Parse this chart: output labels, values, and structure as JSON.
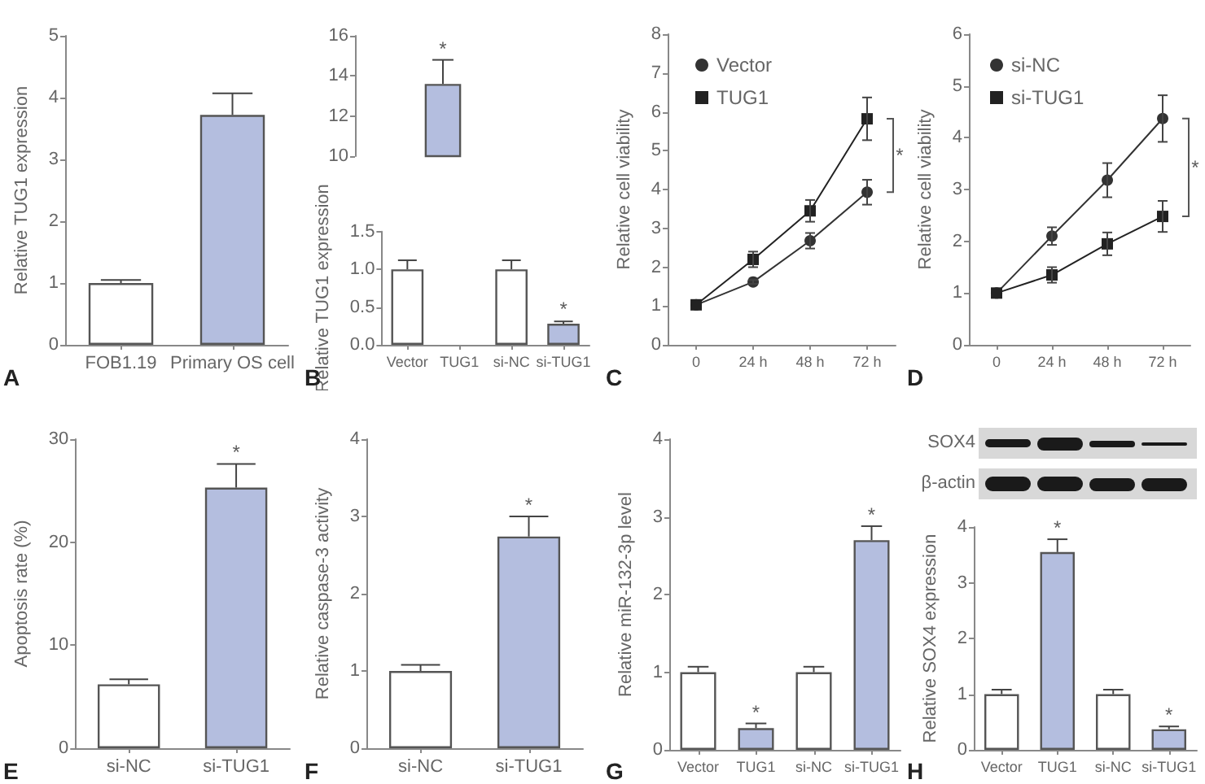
{
  "chart_data": [
    {
      "type": "bar",
      "ylabel": "Relative TUG1 expression",
      "categories": [
        "FOB1.19",
        "Primary OS cell"
      ],
      "values": [
        1.0,
        3.72
      ],
      "colors": [
        "#ffffff",
        "#b4bedf"
      ],
      "errors": [
        [
          1.0,
          1.05
        ],
        [
          3.72,
          4.07
        ]
      ],
      "ylim": [
        0,
        5
      ],
      "yticks": [
        0,
        1,
        2,
        3,
        4,
        5
      ],
      "annotations": [
        "A"
      ]
    },
    {
      "type": "bar",
      "categories": [
        "Vector",
        "TUG1",
        "si-NC",
        "si-TUG1"
      ],
      "values": [
        null,
        13.6,
        null,
        null
      ],
      "colors": [
        "#ffffff",
        "#b4bedf",
        "#ffffff",
        "#b4bedf"
      ],
      "errors": [
        null,
        [
          13.6,
          14.8
        ],
        null,
        null
      ],
      "ylim": [
        10,
        16
      ],
      "yticks": [
        10,
        12,
        14,
        16
      ],
      "tick_labels": "y",
      "annotations": [
        {
          "text": "*",
          "x": "TUG1",
          "y": 13.6
        }
      ]
    },
    {
      "type": "bar",
      "ylabel": "Relative TUG1 expression",
      "categories": [
        "Vector",
        "TUG1",
        "si-NC",
        "si-TUG1"
      ],
      "values": [
        1.0,
        null,
        1.0,
        0.28
      ],
      "colors": [
        "#ffffff",
        "#b4bedf",
        "#ffffff",
        "#b4bedf"
      ],
      "errors": [
        [
          1.0,
          1.12
        ],
        null,
        [
          1.0,
          1.12
        ],
        [
          0.28,
          0.31
        ]
      ],
      "ylim": [
        0,
        1.5
      ],
      "yticks": [
        {
          "value": 0,
          "label": "0.0"
        },
        0.5,
        {
          "value": 1,
          "label": "1.0"
        },
        1.5
      ],
      "annotations": [
        "B",
        {
          "text": "*",
          "x": "si-TUG1",
          "y": 0.28
        }
      ]
    },
    {
      "type": "line",
      "ylabel": "Relative cell viability",
      "categories": [
        "0",
        "24 h",
        "48 h",
        "72 h"
      ],
      "series": [
        {
          "name": "Vector",
          "color": "#333333",
          "marker": "circle",
          "values": [
            1.03,
            1.62,
            2.68,
            3.93
          ],
          "errors": [
            0,
            0.05,
            0.2,
            0.32
          ]
        },
        {
          "name": "TUG1",
          "color": "#222222",
          "marker": "square",
          "values": [
            1.03,
            2.2,
            3.45,
            5.82
          ],
          "errors": [
            0,
            0.2,
            0.28,
            0.55
          ]
        }
      ],
      "ylim": [
        0,
        8
      ],
      "yticks": [
        0,
        1,
        2,
        3,
        4,
        5,
        6,
        7,
        8
      ],
      "legend": "top left",
      "line_style": "solid",
      "annotations": [
        "C",
        {
          "text": "*",
          "x": "72 h",
          "y": 5.82
        }
      ]
    },
    {
      "type": "line",
      "ylabel": "Relative cell viability",
      "categories": [
        "0",
        "24 h",
        "48 h",
        "72 h"
      ],
      "series": [
        {
          "name": "si-NC",
          "color": "#333333",
          "marker": "circle",
          "values": [
            1.0,
            2.1,
            3.18,
            4.37
          ],
          "errors": [
            0,
            0.17,
            0.33,
            0.45
          ]
        },
        {
          "name": "si-TUG1",
          "color": "#222222",
          "marker": "square",
          "values": [
            1.0,
            1.35,
            1.95,
            2.48
          ],
          "errors": [
            0,
            0.15,
            0.22,
            0.3
          ]
        }
      ],
      "ylim": [
        0,
        6
      ],
      "yticks": [
        0,
        1,
        2,
        3,
        4,
        5,
        6
      ],
      "legend": "top left",
      "line_style": "solid",
      "annotations": [
        "D",
        {
          "text": "*",
          "x": "72 h",
          "y": 4.37
        }
      ]
    },
    {
      "type": "bar",
      "ylabel": "Apoptosis rate (%)",
      "categories": [
        "si-NC",
        "si-TUG1"
      ],
      "values": [
        6.2,
        25.3
      ],
      "colors": [
        "#ffffff",
        "#b4bedf"
      ],
      "errors": [
        [
          6.2,
          6.7
        ],
        [
          25.3,
          27.6
        ]
      ],
      "ylim": [
        0,
        30
      ],
      "yticks": [
        0,
        10,
        20,
        30
      ],
      "annotations": [
        "E",
        {
          "text": "*",
          "x": "si-TUG1",
          "y": 25.3
        }
      ]
    },
    {
      "type": "bar",
      "ylabel": "Relative caspase-3 activity",
      "categories": [
        "si-NC",
        "si-TUG1"
      ],
      "values": [
        1.0,
        2.74
      ],
      "colors": [
        "#ffffff",
        "#b4bedf"
      ],
      "errors": [
        [
          1.0,
          1.08
        ],
        [
          2.74,
          3.0
        ]
      ],
      "ylim": [
        0,
        4
      ],
      "yticks": [
        0,
        1,
        2,
        3,
        4
      ],
      "annotations": [
        "F",
        {
          "text": "*",
          "x": "si-TUG1",
          "y": 2.74
        }
      ]
    },
    {
      "type": "bar",
      "ylabel": "Relative miR-132-3p level",
      "categories": [
        "Vector",
        "TUG1",
        "si-NC",
        "si-TUG1"
      ],
      "values": [
        1.0,
        0.28,
        1.0,
        2.7
      ],
      "colors": [
        "#ffffff",
        "#b4bedf",
        "#ffffff",
        "#b4bedf"
      ],
      "errors": [
        [
          1.0,
          1.07
        ],
        [
          0.28,
          0.34
        ],
        [
          1.0,
          1.07
        ],
        [
          2.7,
          2.88
        ]
      ],
      "ylim": [
        0,
        4
      ],
      "yticks": [
        0,
        1,
        2,
        3,
        4
      ],
      "annotations": [
        "G",
        {
          "text": "*",
          "x": "TUG1",
          "y": 0.28
        },
        {
          "text": "*",
          "x": "si-TUG1",
          "y": 2.7
        }
      ]
    },
    {
      "type": "bar",
      "ylabel": "Relative SOX4 expression",
      "categories": [
        "Vector",
        "TUG1",
        "si-NC",
        "si-TUG1"
      ],
      "values": [
        1.0,
        3.55,
        1.0,
        0.37
      ],
      "colors": [
        "#ffffff",
        "#b4bedf",
        "#ffffff",
        "#b4bedf"
      ],
      "errors": [
        [
          1.0,
          1.08
        ],
        [
          3.55,
          3.78
        ],
        [
          1.0,
          1.08
        ],
        [
          0.37,
          0.42
        ]
      ],
      "ylim": [
        0,
        4
      ],
      "yticks": [
        0,
        1,
        2,
        3,
        4
      ],
      "annotations": [
        "H",
        "SOX4",
        "β-actin",
        {
          "text": "*",
          "x": "TUG1",
          "y": 3.55
        },
        {
          "text": "*",
          "x": "si-TUG1",
          "y": 0.37
        }
      ]
    }
  ]
}
